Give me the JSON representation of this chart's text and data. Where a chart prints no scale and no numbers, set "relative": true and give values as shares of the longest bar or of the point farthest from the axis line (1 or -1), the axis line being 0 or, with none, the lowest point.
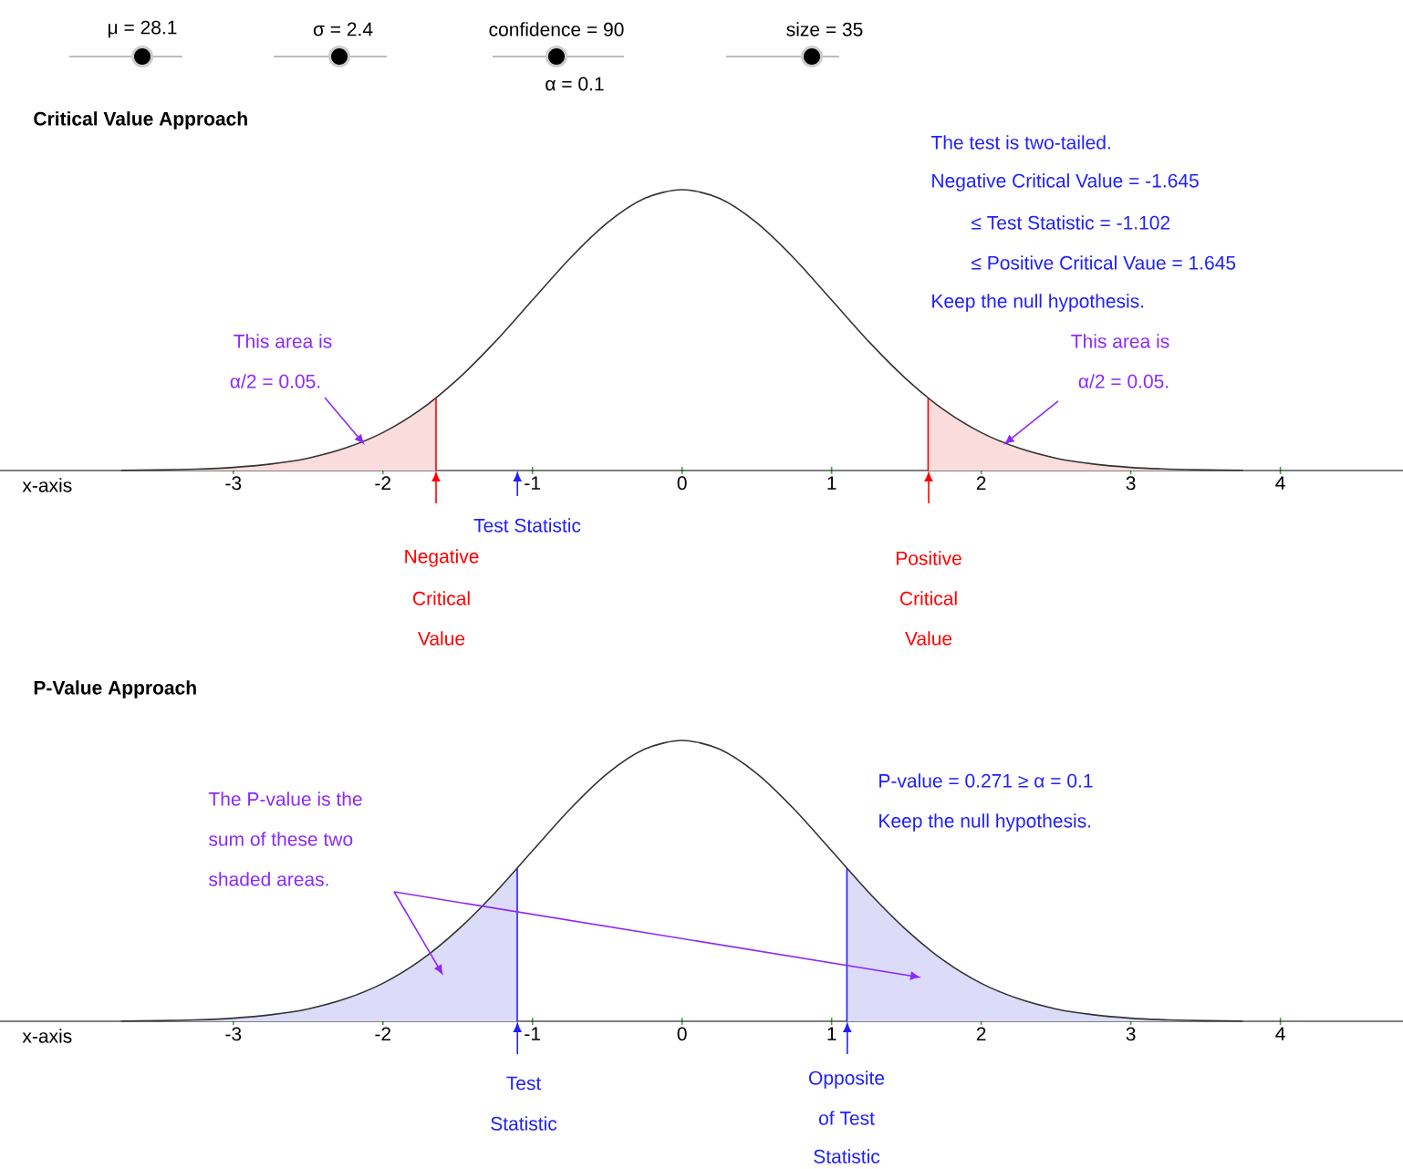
{
  "chart_data": [
    {
      "type": "line",
      "title": "Critical Value Approach",
      "xlabel": "x-axis",
      "relative": true,
      "xlim": [
        -4.56,
        4.82
      ],
      "xticks": [
        -3,
        -2,
        -1,
        0,
        1,
        2,
        3,
        4
      ],
      "series": [
        {
          "type": "area",
          "color": "#fadcdc",
          "x": [
            -3.75,
            -3.5,
            -3.25,
            -3,
            -2.75,
            -2.5,
            -2.25,
            -2,
            -1.75,
            -1.645
          ],
          "values": [
            0.001,
            0.002,
            0.005,
            0.011,
            0.023,
            0.044,
            0.08,
            0.135,
            0.216,
            0.258
          ]
        },
        {
          "type": "area",
          "color": "#fadcdc",
          "x": [
            1.645,
            1.75,
            2,
            2.25,
            2.5,
            2.75,
            3,
            3.25,
            3.5,
            3.75
          ],
          "values": [
            0.258,
            0.216,
            0.135,
            0.08,
            0.044,
            0.023,
            0.011,
            0.005,
            0.002,
            0.001
          ]
        },
        {
          "type": "line",
          "color": "#333333",
          "x": [
            -3.75,
            -3.5,
            -3.25,
            -3,
            -2.75,
            -2.5,
            -2.25,
            -2,
            -1.75,
            -1.5,
            -1.25,
            -1,
            -0.75,
            -0.5,
            -0.25,
            0,
            0.25,
            0.5,
            0.75,
            1,
            1.25,
            1.5,
            1.75,
            2,
            2.25,
            2.5,
            2.75,
            3,
            3.25,
            3.5,
            3.75
          ],
          "values": [
            0.001,
            0.002,
            0.005,
            0.011,
            0.023,
            0.044,
            0.08,
            0.135,
            0.216,
            0.325,
            0.458,
            0.607,
            0.755,
            0.882,
            0.969,
            1,
            0.969,
            0.882,
            0.755,
            0.607,
            0.458,
            0.325,
            0.216,
            0.135,
            0.08,
            0.044,
            0.023,
            0.011,
            0.005,
            0.002,
            0.001
          ]
        },
        {
          "type": "line",
          "color": "#ff0000",
          "x": [
            -1.645,
            -1.645
          ],
          "values": [
            0,
            0.258
          ]
        },
        {
          "type": "line",
          "color": "#ff0000",
          "x": [
            1.645,
            1.645
          ],
          "values": [
            0,
            0.258
          ]
        }
      ],
      "annotations": [
        "μ = 28.1",
        "σ = 2.4",
        "confidence = 90",
        "α = 0.1",
        "size = 35",
        "The test is two-tailed.",
        "Negative Critical Value = -1.645",
        "≤ Test Statistic = -1.102",
        "≤ Positive Critical Vaue = 1.645",
        "Keep the null hypothesis.",
        "This area is",
        "α/2 = 0.05.",
        "This area is",
        "α/2 = 0.05.",
        "Negative",
        "Critical",
        "Value",
        "Positive",
        "Critical",
        "Value",
        "Test Statistic"
      ]
    },
    {
      "type": "line",
      "title": "P-Value Approach",
      "xlabel": "x-axis",
      "relative": true,
      "xlim": [
        -4.56,
        4.82
      ],
      "xticks": [
        -3,
        -2,
        -1,
        0,
        1,
        2,
        3,
        4
      ],
      "series": [
        {
          "type": "area",
          "color": "#dcdcf8",
          "x": [
            -3.75,
            -3.5,
            -3.25,
            -3,
            -2.75,
            -2.5,
            -2.25,
            -2,
            -1.75,
            -1.5,
            -1.25,
            -1.102
          ],
          "values": [
            0.001,
            0.002,
            0.005,
            0.011,
            0.023,
            0.044,
            0.08,
            0.135,
            0.216,
            0.325,
            0.458,
            0.545
          ]
        },
        {
          "type": "area",
          "color": "#dcdcf8",
          "x": [
            1.102,
            1.25,
            1.5,
            1.75,
            2,
            2.25,
            2.5,
            2.75,
            3,
            3.25,
            3.5,
            3.75
          ],
          "values": [
            0.545,
            0.458,
            0.325,
            0.216,
            0.135,
            0.08,
            0.044,
            0.023,
            0.011,
            0.005,
            0.002,
            0.001
          ]
        },
        {
          "type": "line",
          "color": "#333333",
          "x": [
            -3.75,
            -3.5,
            -3.25,
            -3,
            -2.75,
            -2.5,
            -2.25,
            -2,
            -1.75,
            -1.5,
            -1.25,
            -1,
            -0.75,
            -0.5,
            -0.25,
            0,
            0.25,
            0.5,
            0.75,
            1,
            1.25,
            1.5,
            1.75,
            2,
            2.25,
            2.5,
            2.75,
            3,
            3.25,
            3.5,
            3.75
          ],
          "values": [
            0.001,
            0.002,
            0.005,
            0.011,
            0.023,
            0.044,
            0.08,
            0.135,
            0.216,
            0.325,
            0.458,
            0.607,
            0.755,
            0.882,
            0.969,
            1,
            0.969,
            0.882,
            0.755,
            0.607,
            0.458,
            0.325,
            0.216,
            0.135,
            0.08,
            0.044,
            0.023,
            0.011,
            0.005,
            0.002,
            0.001
          ]
        },
        {
          "type": "line",
          "color": "#2020ff",
          "x": [
            -1.102,
            -1.102
          ],
          "values": [
            0,
            0.545
          ]
        },
        {
          "type": "line",
          "color": "#2020ff",
          "x": [
            1.102,
            1.102
          ],
          "values": [
            0,
            0.545
          ]
        }
      ],
      "annotations": [
        "P-value = 0.271 ≥ α = 0.1",
        "Keep the null hypothesis.",
        "The P-value is the",
        "sum of these two",
        "shaded areas.",
        "Test",
        "Statistic",
        "Opposite",
        "of Test",
        "Statistic"
      ]
    }
  ]
}
